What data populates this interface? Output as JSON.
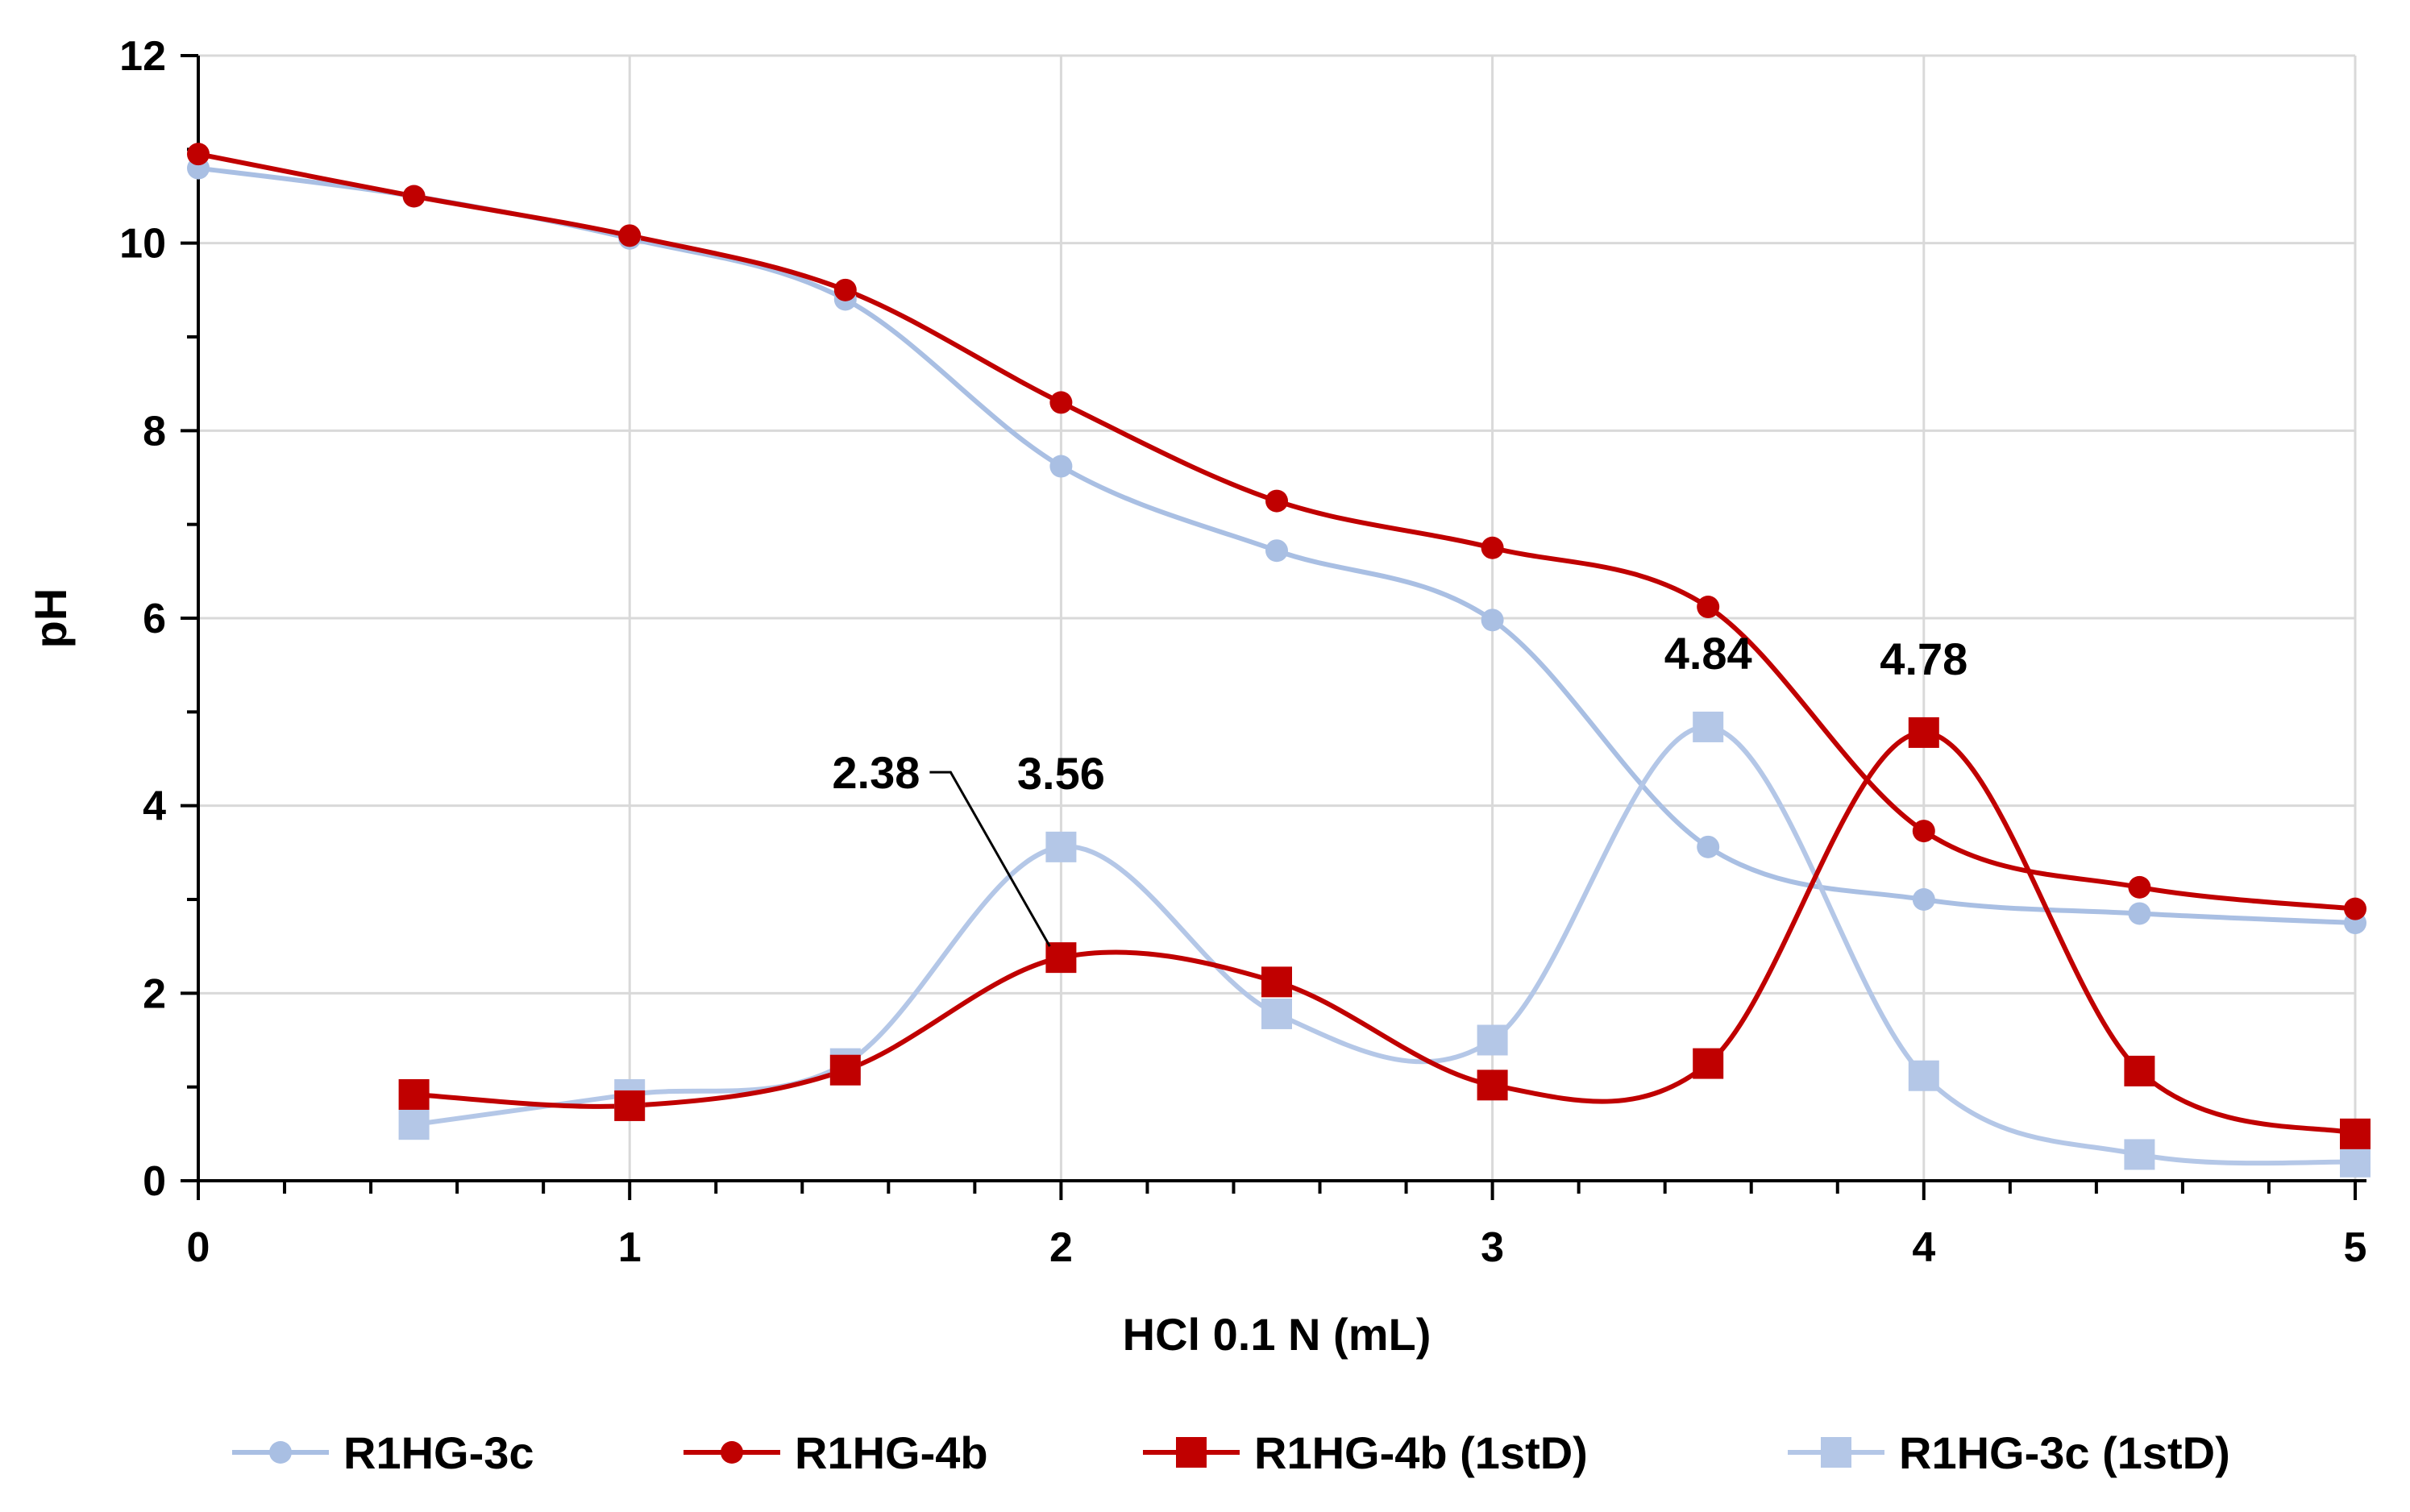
{
  "chart_data": {
    "type": "line",
    "title": "",
    "xlabel": "HCl 0.1 N (mL)",
    "ylabel": "pH",
    "xlim": [
      0,
      5
    ],
    "ylim": [
      0,
      12
    ],
    "xticks": [
      0,
      1,
      2,
      3,
      4,
      5
    ],
    "xtick_labels": [
      "0",
      "1",
      "2",
      "3",
      "4",
      "5"
    ],
    "yticks": [
      0,
      2,
      4,
      6,
      8,
      10,
      12
    ],
    "ytick_labels": [
      "0",
      "2",
      "4",
      "6",
      "8",
      "10",
      "12"
    ],
    "grid": true,
    "legend_position": "bottom",
    "series": [
      {
        "name": "R1HG-3c",
        "color": "#a9bfe3",
        "marker": "circle",
        "x": [
          0,
          0.5,
          1,
          1.5,
          2,
          2.5,
          3,
          3.5,
          4,
          4.5,
          5
        ],
        "y": [
          10.8,
          10.5,
          10.05,
          9.4,
          7.62,
          6.72,
          5.98,
          3.56,
          3.0,
          2.85,
          2.75
        ]
      },
      {
        "name": "R1HG-4b",
        "color": "#c00000",
        "marker": "circle",
        "x": [
          0,
          0.5,
          1,
          1.5,
          2,
          2.5,
          3,
          3.5,
          4,
          4.5,
          5
        ],
        "y": [
          10.95,
          10.5,
          10.08,
          9.5,
          8.3,
          7.25,
          6.75,
          6.12,
          3.73,
          3.13,
          2.9
        ]
      },
      {
        "name": "R1HG-4b (1stD)",
        "color": "#c00000",
        "marker": "square",
        "x": [
          0.5,
          1,
          1.5,
          2,
          2.5,
          3,
          3.5,
          4,
          4.5,
          5
        ],
        "y": [
          0.92,
          0.8,
          1.18,
          2.38,
          2.12,
          1.02,
          1.25,
          4.78,
          1.17,
          0.5
        ]
      },
      {
        "name": "R1HG-3c (1stD)",
        "color": "#b4c7e7",
        "marker": "square",
        "x": [
          0.5,
          1,
          1.5,
          2,
          2.5,
          3,
          3.5,
          4,
          4.5,
          5
        ],
        "y": [
          0.6,
          0.92,
          1.25,
          3.56,
          1.78,
          1.5,
          4.84,
          1.12,
          0.28,
          0.2
        ]
      }
    ],
    "annotations": [
      {
        "text": "2.38",
        "series": 2,
        "x": 2,
        "y": 2.38,
        "callout": true
      },
      {
        "text": "3.56",
        "series": 3,
        "x": 2,
        "y": 3.56,
        "callout": false
      },
      {
        "text": "4.84",
        "series": 3,
        "x": 3.5,
        "y": 4.84,
        "callout": false
      },
      {
        "text": "4.78",
        "series": 2,
        "x": 4,
        "y": 4.78,
        "callout": false
      }
    ]
  }
}
